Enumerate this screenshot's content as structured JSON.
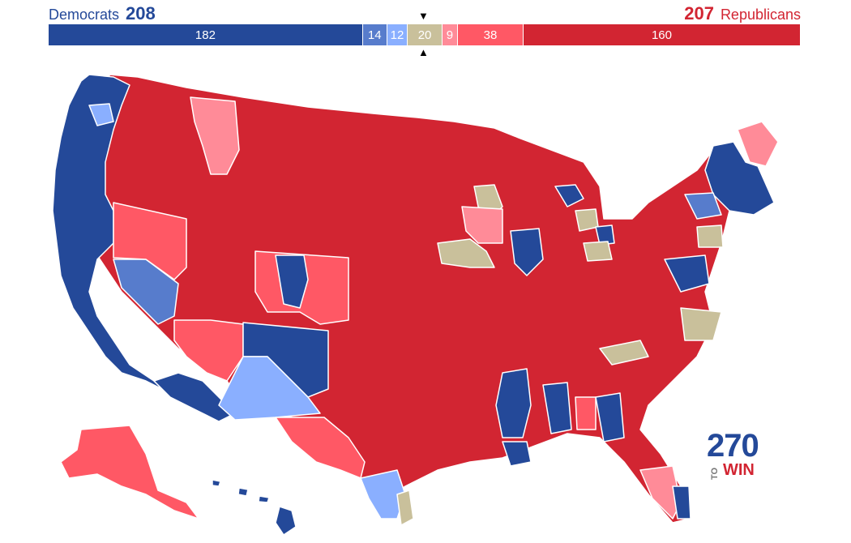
{
  "header": {
    "dem_label": "Democrats",
    "dem_total": "208",
    "rep_total": "207",
    "rep_label": "Republicans"
  },
  "seat_bar": [
    {
      "key": "safe_dem",
      "label": "182",
      "seats": 182,
      "color": "#244999"
    },
    {
      "key": "likely_dem",
      "label": "14",
      "seats": 14,
      "color": "#577ccc"
    },
    {
      "key": "leans_dem",
      "label": "12",
      "seats": 12,
      "color": "#8aafff"
    },
    {
      "key": "tossup",
      "label": "20",
      "seats": 20,
      "color": "#c9c09b"
    },
    {
      "key": "leans_rep",
      "label": "9",
      "seats": 9,
      "color": "#ff8b98"
    },
    {
      "key": "likely_rep",
      "label": "38",
      "seats": 38,
      "color": "#ff5865"
    },
    {
      "key": "safe_rep",
      "label": "160",
      "seats": 160,
      "color": "#d22532"
    }
  ],
  "markers": {
    "top": "▼",
    "bottom": "▲"
  },
  "colors": {
    "safe_dem": "#244999",
    "likely_dem": "#577ccc",
    "leans_dem": "#8aafff",
    "tossup": "#c9c09b",
    "leans_rep": "#ff8b98",
    "likely_rep": "#ff5865",
    "safe_rep": "#d22532",
    "border": "#ffffff"
  },
  "logo": {
    "number": "270",
    "to": "TO",
    "win": "WIN"
  }
}
